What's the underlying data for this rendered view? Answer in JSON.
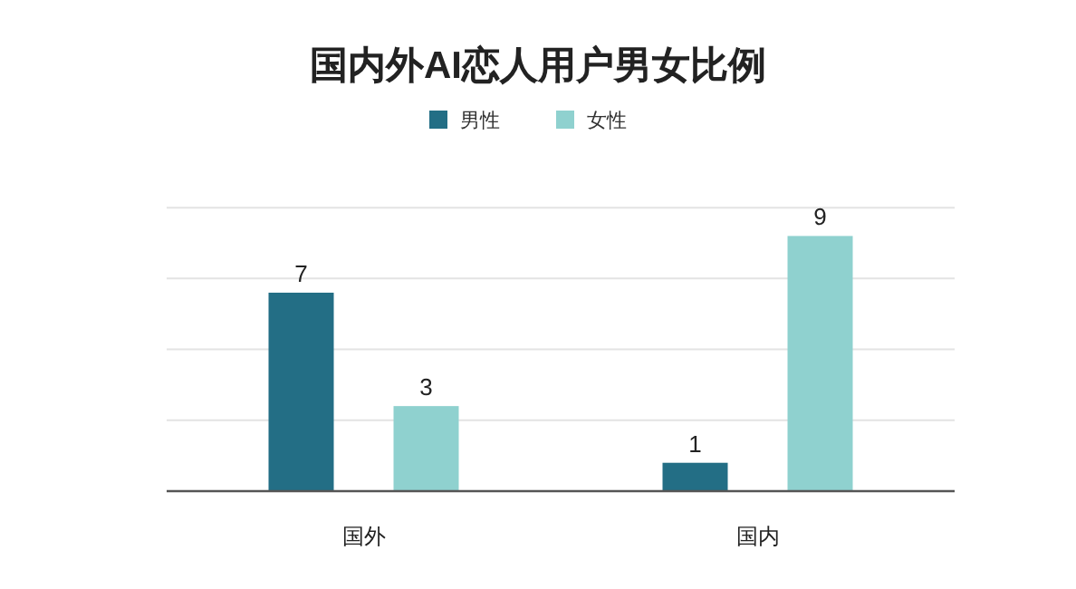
{
  "chart_data": {
    "type": "bar",
    "title": "国内外AI恋人用户男女比例",
    "categories": [
      "国外",
      "国内"
    ],
    "series": [
      {
        "name": "男性",
        "color": "#236e85",
        "values": [
          7,
          1
        ]
      },
      {
        "name": "女性",
        "color": "#8fd1cf",
        "values": [
          3,
          9
        ]
      }
    ],
    "ylim": [
      0,
      10.1
    ],
    "yticks": [
      {
        "value": 0,
        "label": null
      },
      {
        "value": 2.5,
        "label": null
      },
      {
        "value": 5,
        "label": null
      },
      {
        "value": 7.5,
        "label": null
      },
      {
        "value": 10,
        "label": null
      }
    ],
    "tick_labels": "x",
    "grid": "y",
    "legend": "top",
    "data_labels": true
  }
}
